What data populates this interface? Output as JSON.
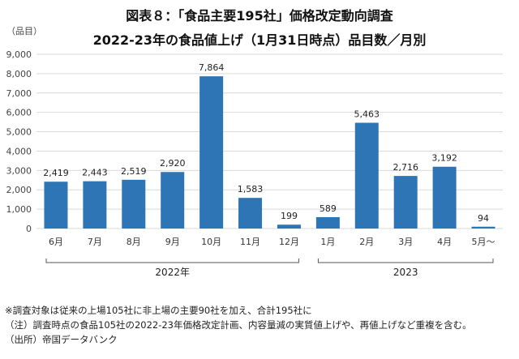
{
  "header": {
    "title_line1": "図表８：「食品主要195社」価格改定動向調査",
    "title_line2": "2022-23年の食品値上げ（1月31日時点）品目数／月別"
  },
  "chart_data": {
    "type": "bar",
    "title": "2022-23年の食品値上げ（1月31日時点）品目数／月別",
    "ylabel": "（品目）",
    "ylim": [
      0,
      9000
    ],
    "yticks": [
      0,
      1000,
      2000,
      3000,
      4000,
      5000,
      6000,
      7000,
      8000,
      9000
    ],
    "ytick_labels": [
      "0",
      "1,000",
      "2,000",
      "3,000",
      "4,000",
      "5,000",
      "6,000",
      "7,000",
      "8,000",
      "9,000"
    ],
    "categories": [
      "6月",
      "7月",
      "8月",
      "9月",
      "10月",
      "11月",
      "12月",
      "1月",
      "2月",
      "3月",
      "4月",
      "5月～"
    ],
    "values": [
      2419,
      2443,
      2519,
      2920,
      7864,
      1583,
      199,
      589,
      5463,
      2716,
      3192,
      94
    ],
    "value_labels": [
      "2,419",
      "2,443",
      "2,519",
      "2,920",
      "7,864",
      "1,583",
      "199",
      "589",
      "5,463",
      "2,716",
      "3,192",
      "94"
    ],
    "groups": [
      {
        "label": "2022年",
        "start": 0,
        "end": 6
      },
      {
        "label": "2023",
        "start": 7,
        "end": 11
      }
    ],
    "bar_color": "#2E75B6",
    "grid": true
  },
  "notes": {
    "note1": "※調査対象は従来の上場105社に非上場の主要90社を加え、合計195社に",
    "note2": "（注）調査時点の食品105社の2022-23年価格改定計画、内容量減の実質値上げや、再値上げなど重複を含む。",
    "note3": "（出所）帝国データバンク"
  }
}
